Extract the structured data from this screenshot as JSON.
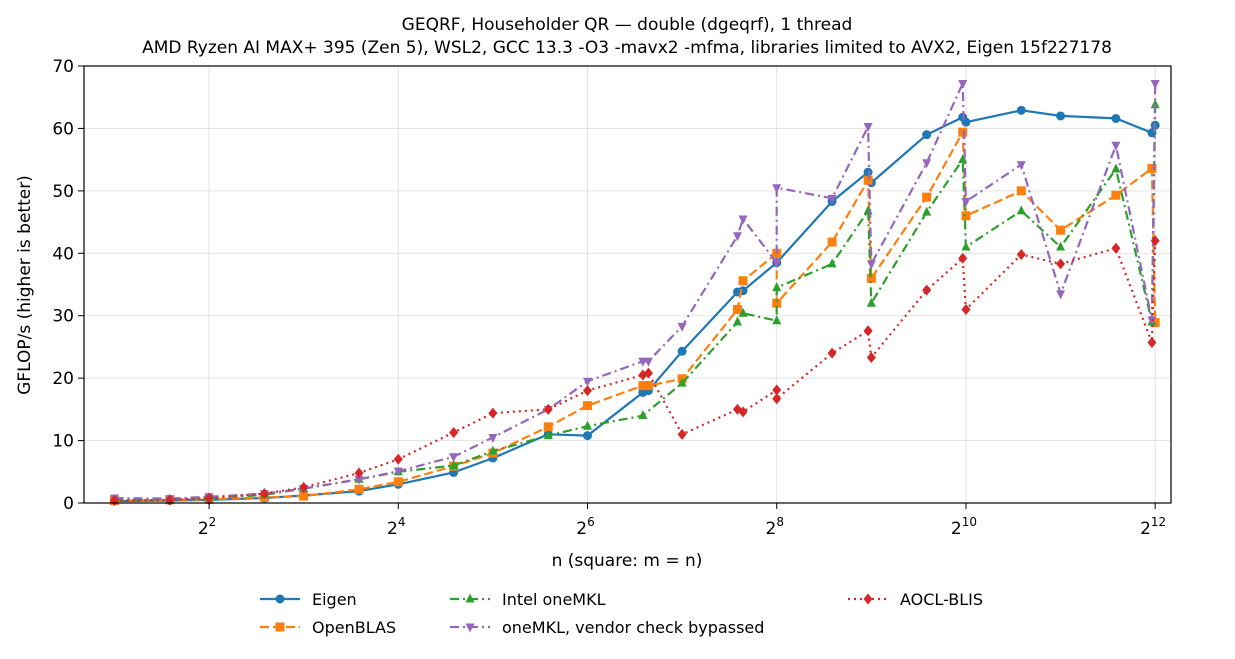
{
  "chart_data": {
    "type": "line",
    "title": "GEQRF, Householder QR — double (dgeqrf), 1 thread",
    "subtitle": "AMD Ryzen AI MAX+ 395 (Zen 5), WSL2, GCC 13.3 -O3 -mavx2 -mfma, libraries limited to AVX2, Eigen 15f227178",
    "xlabel": "n (square: m = n)",
    "ylabel": "GFLOP/s (higher is better)",
    "x_scale": "log2",
    "xlim": [
      1.6,
      4600
    ],
    "ylim": [
      0,
      70
    ],
    "x_ticks": [
      {
        "value": 4,
        "base": "2",
        "exp": "2"
      },
      {
        "value": 16,
        "base": "2",
        "exp": "4"
      },
      {
        "value": 64,
        "base": "2",
        "exp": "6"
      },
      {
        "value": 256,
        "base": "2",
        "exp": "8"
      },
      {
        "value": 1024,
        "base": "2",
        "exp": "10"
      },
      {
        "value": 4096,
        "base": "2",
        "exp": "12"
      }
    ],
    "y_ticks": [
      0,
      10,
      20,
      30,
      40,
      50,
      60,
      70
    ],
    "grid": true,
    "legend_position": "bottom",
    "series": [
      {
        "name": "Eigen",
        "color": "#1f77b4",
        "marker": "circle",
        "dash": "solid",
        "x": [
          2,
          3,
          4,
          6,
          8,
          12,
          16,
          24,
          32,
          48,
          64,
          96,
          100,
          128,
          192,
          200,
          256,
          384,
          500,
          512,
          768,
          1000,
          1024,
          1536,
          2048,
          3072,
          4000,
          4096
        ],
        "y": [
          0.3,
          0.4,
          0.5,
          0.8,
          1.2,
          1.9,
          3.0,
          4.9,
          7.2,
          11.0,
          10.8,
          17.7,
          18.0,
          24.3,
          33.8,
          34.0,
          38.5,
          48.3,
          53.0,
          51.3,
          59.0,
          61.8,
          61.0,
          62.9,
          62.0,
          61.6,
          59.3,
          60.5
        ]
      },
      {
        "name": "OpenBLAS",
        "color": "#ff7f0e",
        "marker": "square",
        "dash": "dashed",
        "x": [
          2,
          3,
          4,
          6,
          8,
          12,
          16,
          24,
          32,
          48,
          64,
          96,
          100,
          128,
          192,
          200,
          256,
          256,
          384,
          500,
          512,
          768,
          1000,
          1024,
          1536,
          2048,
          3072,
          4000,
          4096
        ],
        "y": [
          0.4,
          0.5,
          0.6,
          0.9,
          1.1,
          2.2,
          3.4,
          5.9,
          8.0,
          12.2,
          15.6,
          18.8,
          18.8,
          19.9,
          31.0,
          35.6,
          40.0,
          32.0,
          41.8,
          51.7,
          36.0,
          49.0,
          59.4,
          46.0,
          50.0,
          43.7,
          49.3,
          53.6,
          28.9
        ]
      },
      {
        "name": "Intel oneMKL",
        "color": "#2ca02c",
        "marker": "triangle-up",
        "dash": "dashdot",
        "x": [
          2,
          3,
          4,
          6,
          8,
          12,
          16,
          24,
          32,
          48,
          64,
          96,
          128,
          192,
          200,
          256,
          256,
          384,
          500,
          512,
          768,
          1000,
          1024,
          1536,
          2048,
          3072,
          4000,
          4096
        ],
        "y": [
          0.5,
          0.6,
          0.8,
          1.3,
          2.3,
          3.8,
          5.0,
          6.0,
          8.3,
          10.8,
          12.3,
          14.0,
          19.2,
          29.0,
          30.4,
          29.2,
          34.5,
          38.3,
          46.8,
          32.0,
          46.6,
          55.0,
          41.0,
          46.8,
          41.0,
          53.5,
          29.0,
          63.8
        ]
      },
      {
        "name": "oneMKL, vendor check bypassed",
        "color": "#9467bd",
        "marker": "triangle-down",
        "dash": "dashdot",
        "x": [
          2,
          3,
          4,
          6,
          8,
          12,
          16,
          24,
          32,
          48,
          64,
          96,
          100,
          128,
          192,
          200,
          256,
          256,
          384,
          500,
          512,
          768,
          1000,
          1024,
          1536,
          2048,
          3072,
          4000,
          4096
        ],
        "y": [
          0.8,
          0.7,
          1.0,
          1.5,
          2.3,
          3.8,
          5.1,
          7.4,
          10.5,
          15.0,
          19.5,
          22.7,
          22.7,
          28.3,
          42.8,
          45.5,
          38.5,
          50.5,
          48.8,
          60.3,
          38.3,
          54.5,
          67.2,
          48.3,
          54.2,
          33.5,
          57.3,
          29.3,
          67.2
        ]
      },
      {
        "name": "AOCL-BLIS",
        "color": "#d62728",
        "marker": "diamond",
        "dash": "dotted",
        "x": [
          2,
          3,
          4,
          6,
          8,
          12,
          16,
          24,
          32,
          48,
          64,
          96,
          100,
          128,
          192,
          200,
          256,
          256,
          384,
          500,
          512,
          768,
          1000,
          1024,
          1536,
          2048,
          3072,
          4000,
          4096
        ],
        "y": [
          0.4,
          0.5,
          0.8,
          1.5,
          2.5,
          4.8,
          7.0,
          11.3,
          14.4,
          15.0,
          18.0,
          20.5,
          20.8,
          11.0,
          15.0,
          14.6,
          18.1,
          16.7,
          24.0,
          27.6,
          23.3,
          34.1,
          39.2,
          31.0,
          39.8,
          38.3,
          40.8,
          25.7,
          42.0
        ]
      }
    ]
  }
}
